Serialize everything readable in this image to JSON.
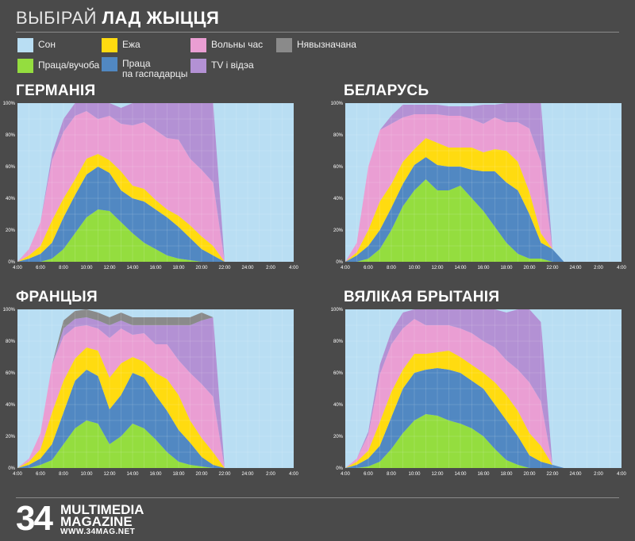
{
  "header": {
    "title_light": "ВЫБІРАЙ",
    "title_bold": "ЛАД ЖЫЦЦЯ"
  },
  "colors": {
    "sleep": "#b9def3",
    "work": "#94dd3f",
    "eat": "#ffdb10",
    "household": "#5188c2",
    "free": "#ea9ed3",
    "tv": "#b391d4",
    "undefined": "#8a8a8a"
  },
  "legend": [
    {
      "key": "sleep",
      "label": "Сон"
    },
    {
      "key": "eat",
      "label": "Ежа"
    },
    {
      "key": "free",
      "label": "Вольны час"
    },
    {
      "key": "undefined",
      "label": "Нявызначана"
    },
    {
      "key": "work",
      "label": "Праца/вучоба"
    },
    {
      "key": "household",
      "label": "Праца\nпа гаспадарцы"
    },
    {
      "key": "tv",
      "label": "TV і відэа"
    }
  ],
  "chart_data": [
    {
      "type": "area",
      "title": "ГЕРМАНІЯ",
      "x": [
        "4:00",
        "5:00",
        "6:00",
        "7:00",
        "8:00",
        "9:00",
        "10:00",
        "11:00",
        "12:00",
        "13:00",
        "14:00",
        "15:00",
        "16:00",
        "17:00",
        "18:00",
        "19:00",
        "20:00",
        "21:00",
        "22:00",
        "23:00",
        "24:00",
        "1:00",
        "2:00",
        "3:00",
        "4:00"
      ],
      "x_tick_labels": [
        "4:00",
        "6:00",
        "8:00",
        "10:00",
        "12:00",
        "14:00",
        "16:00",
        "18:00",
        "20:00",
        "22:00",
        "24:00",
        "2:00",
        "4:00"
      ],
      "y_tick_labels": [
        "0%",
        "20%",
        "40%",
        "60%",
        "80%",
        "100%"
      ],
      "ylim": [
        0,
        100
      ],
      "stack_order": [
        "work",
        "household",
        "eat",
        "free",
        "tv",
        "undefined"
      ],
      "series": {
        "work": [
          0,
          0,
          0,
          2,
          8,
          18,
          28,
          33,
          32,
          25,
          18,
          12,
          8,
          4,
          2,
          1,
          0,
          0,
          0,
          0,
          0,
          0,
          0,
          0,
          0
        ],
        "household": [
          0,
          2,
          5,
          10,
          20,
          24,
          27,
          27,
          24,
          20,
          22,
          26,
          25,
          24,
          20,
          14,
          8,
          4,
          0,
          0,
          0,
          0,
          0,
          0,
          0
        ],
        "eat": [
          0,
          2,
          5,
          14,
          12,
          10,
          10,
          8,
          8,
          12,
          8,
          8,
          6,
          5,
          7,
          8,
          8,
          6,
          0,
          0,
          0,
          0,
          0,
          0,
          0
        ],
        "free": [
          0,
          4,
          15,
          38,
          42,
          40,
          30,
          22,
          28,
          30,
          38,
          42,
          44,
          45,
          48,
          42,
          42,
          40,
          0,
          0,
          0,
          0,
          0,
          0,
          0
        ],
        "tv": [
          0,
          0,
          0,
          4,
          8,
          8,
          5,
          10,
          8,
          10,
          14,
          12,
          17,
          22,
          23,
          35,
          42,
          50,
          0,
          0,
          0,
          0,
          0,
          0,
          0
        ],
        "undefined": [
          0,
          0,
          0,
          0,
          0,
          0,
          0,
          0,
          0,
          0,
          0,
          0,
          0,
          0,
          0,
          0,
          0,
          0,
          0,
          0,
          0,
          0,
          0,
          0,
          0
        ]
      }
    },
    {
      "type": "area",
      "title": "БЕЛАРУСЬ",
      "x": [
        "4:00",
        "5:00",
        "6:00",
        "7:00",
        "8:00",
        "9:00",
        "10:00",
        "11:00",
        "12:00",
        "13:00",
        "14:00",
        "15:00",
        "16:00",
        "17:00",
        "18:00",
        "19:00",
        "20:00",
        "21:00",
        "22:00",
        "23:00",
        "24:00",
        "1:00",
        "2:00",
        "3:00",
        "4:00"
      ],
      "x_tick_labels": [
        "4:00",
        "6:00",
        "8:00",
        "10:00",
        "12:00",
        "14:00",
        "16:00",
        "18:00",
        "20:00",
        "22:00",
        "24:00",
        "2:00",
        "4:00"
      ],
      "y_tick_labels": [
        "0%",
        "20%",
        "40%",
        "60%",
        "80%",
        "100%"
      ],
      "ylim": [
        0,
        100
      ],
      "stack_order": [
        "work",
        "household",
        "eat",
        "free",
        "tv",
        "undefined"
      ],
      "series": {
        "work": [
          0,
          0,
          2,
          8,
          20,
          35,
          45,
          52,
          45,
          45,
          48,
          40,
          32,
          22,
          12,
          5,
          2,
          2,
          0,
          0,
          0,
          0,
          0,
          0,
          0
        ],
        "household": [
          0,
          4,
          8,
          12,
          14,
          14,
          16,
          14,
          16,
          15,
          12,
          18,
          25,
          35,
          38,
          40,
          28,
          10,
          8,
          0,
          0,
          0,
          0,
          0,
          0
        ],
        "eat": [
          0,
          2,
          10,
          18,
          15,
          14,
          10,
          12,
          14,
          12,
          12,
          14,
          12,
          14,
          20,
          18,
          14,
          6,
          0,
          0,
          0,
          0,
          0,
          0,
          0
        ],
        "free": [
          0,
          6,
          40,
          45,
          38,
          28,
          22,
          15,
          18,
          20,
          20,
          18,
          18,
          20,
          18,
          25,
          40,
          45,
          0,
          0,
          0,
          0,
          0,
          0,
          0
        ],
        "tv": [
          0,
          0,
          0,
          0,
          5,
          8,
          6,
          6,
          6,
          6,
          6,
          8,
          12,
          8,
          12,
          12,
          16,
          37,
          0,
          0,
          0,
          0,
          0,
          0,
          0
        ],
        "undefined": [
          0,
          0,
          0,
          0,
          0,
          0,
          0,
          0,
          0,
          0,
          0,
          0,
          0,
          0,
          0,
          0,
          0,
          0,
          0,
          0,
          0,
          0,
          0,
          0,
          0
        ]
      }
    },
    {
      "type": "area",
      "title": "ФРАНЦЫЯ",
      "x": [
        "4:00",
        "5:00",
        "6:00",
        "7:00",
        "8:00",
        "9:00",
        "10:00",
        "11:00",
        "12:00",
        "13:00",
        "14:00",
        "15:00",
        "16:00",
        "17:00",
        "18:00",
        "19:00",
        "20:00",
        "21:00",
        "22:00",
        "23:00",
        "24:00",
        "1:00",
        "2:00",
        "3:00",
        "4:00"
      ],
      "x_tick_labels": [
        "4:00",
        "6:00",
        "8:00",
        "10:00",
        "12:00",
        "14:00",
        "16:00",
        "18:00",
        "20:00",
        "22:00",
        "24:00",
        "2:00",
        "4:00"
      ],
      "y_tick_labels": [
        "0%",
        "20%",
        "40%",
        "60%",
        "80%",
        "100%"
      ],
      "ylim": [
        0,
        100
      ],
      "stack_order": [
        "work",
        "household",
        "eat",
        "free",
        "tv",
        "undefined"
      ],
      "series": {
        "work": [
          0,
          0,
          2,
          5,
          15,
          25,
          30,
          28,
          15,
          20,
          28,
          25,
          18,
          10,
          4,
          2,
          1,
          0,
          0,
          0,
          0,
          0,
          0,
          0,
          0
        ],
        "household": [
          0,
          2,
          4,
          10,
          20,
          30,
          32,
          30,
          22,
          26,
          32,
          32,
          28,
          26,
          20,
          14,
          6,
          2,
          0,
          0,
          0,
          0,
          0,
          0,
          0
        ],
        "eat": [
          0,
          2,
          6,
          20,
          20,
          14,
          14,
          16,
          20,
          20,
          10,
          10,
          14,
          20,
          22,
          14,
          12,
          8,
          0,
          0,
          0,
          0,
          0,
          0,
          0
        ],
        "free": [
          0,
          2,
          10,
          30,
          28,
          20,
          14,
          14,
          25,
          22,
          14,
          18,
          18,
          22,
          22,
          30,
          34,
          35,
          0,
          0,
          0,
          0,
          0,
          0,
          0
        ],
        "tv": [
          0,
          0,
          0,
          0,
          5,
          5,
          5,
          5,
          8,
          5,
          6,
          5,
          12,
          12,
          22,
          30,
          40,
          50,
          0,
          0,
          0,
          0,
          0,
          0,
          0
        ],
        "undefined": [
          0,
          0,
          0,
          0,
          5,
          5,
          5,
          5,
          5,
          5,
          5,
          5,
          5,
          5,
          5,
          5,
          5,
          0,
          0,
          0,
          0,
          0,
          0,
          0,
          0
        ]
      }
    },
    {
      "type": "area",
      "title": "ВЯЛІКАЯ БРЫТАНІЯ",
      "x": [
        "4:00",
        "5:00",
        "6:00",
        "7:00",
        "8:00",
        "9:00",
        "10:00",
        "11:00",
        "12:00",
        "13:00",
        "14:00",
        "15:00",
        "16:00",
        "17:00",
        "18:00",
        "19:00",
        "20:00",
        "21:00",
        "22:00",
        "23:00",
        "24:00",
        "1:00",
        "2:00",
        "3:00",
        "4:00"
      ],
      "x_tick_labels": [
        "4:00",
        "6:00",
        "8:00",
        "10:00",
        "12:00",
        "14:00",
        "16:00",
        "18:00",
        "20:00",
        "22:00",
        "24:00",
        "2:00",
        "4:00"
      ],
      "y_tick_labels": [
        "0%",
        "20%",
        "40%",
        "60%",
        "80%",
        "100%"
      ],
      "ylim": [
        0,
        100
      ],
      "stack_order": [
        "work",
        "household",
        "eat",
        "free",
        "tv",
        "undefined"
      ],
      "series": {
        "work": [
          0,
          0,
          1,
          4,
          12,
          22,
          30,
          34,
          33,
          30,
          28,
          25,
          20,
          12,
          5,
          2,
          0,
          0,
          0,
          0,
          0,
          0,
          0,
          0,
          0
        ],
        "household": [
          0,
          2,
          5,
          10,
          20,
          28,
          30,
          28,
          30,
          32,
          32,
          30,
          30,
          28,
          25,
          18,
          8,
          4,
          2,
          0,
          0,
          0,
          0,
          0,
          0
        ],
        "eat": [
          0,
          2,
          5,
          15,
          16,
          12,
          12,
          10,
          10,
          12,
          10,
          10,
          10,
          14,
          16,
          16,
          14,
          10,
          0,
          0,
          0,
          0,
          0,
          0,
          0
        ],
        "free": [
          0,
          2,
          10,
          30,
          30,
          26,
          22,
          18,
          17,
          16,
          18,
          20,
          20,
          22,
          22,
          26,
          32,
          28,
          0,
          0,
          0,
          0,
          0,
          0,
          0
        ],
        "tv": [
          0,
          0,
          2,
          6,
          8,
          10,
          6,
          10,
          10,
          10,
          12,
          15,
          20,
          24,
          30,
          38,
          46,
          50,
          0,
          0,
          0,
          0,
          0,
          0,
          0
        ],
        "undefined": [
          0,
          0,
          0,
          0,
          0,
          0,
          0,
          0,
          0,
          0,
          0,
          0,
          0,
          0,
          0,
          0,
          0,
          0,
          0,
          0,
          0,
          0,
          0,
          0,
          0
        ]
      }
    }
  ],
  "footer": {
    "number": "34",
    "brand": "MULTIMEDIA\nMAGAZINE",
    "url": "WWW.34MAG.NET"
  }
}
